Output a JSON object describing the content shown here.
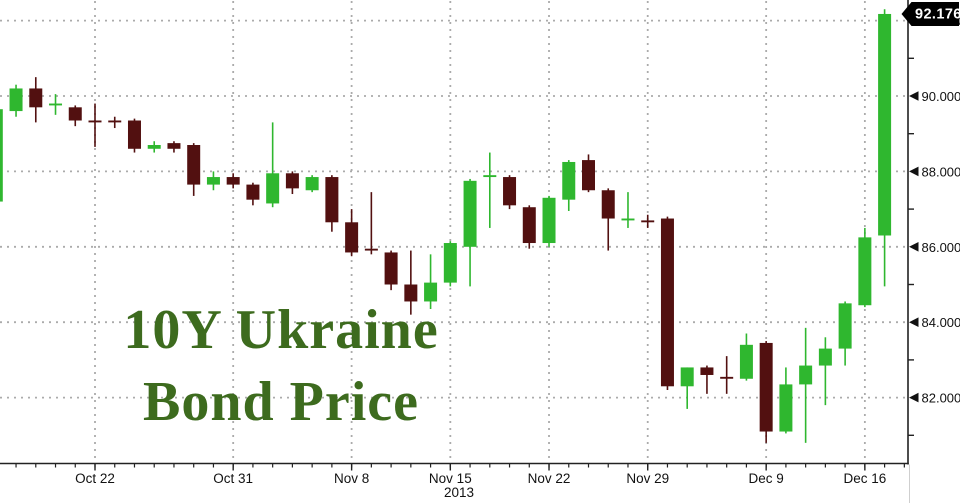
{
  "colors": {
    "background": "#ffffff",
    "candle_up": "#2fb72f",
    "candle_down": "#521010",
    "grid": "#ababab",
    "axis": "#222222",
    "tick_label": "#111111",
    "title_text": "#3d6b1e",
    "tag_background": "#000000",
    "tag_text": "#ffffff"
  },
  "chart_data": {
    "type": "candlestick",
    "title": "10Y Ukraine Bond Price",
    "title_lines": [
      "10Y Ukraine",
      "Bond Price"
    ],
    "legend": "none",
    "grid": "dotted",
    "last_price": {
      "label": "92.176",
      "value": 92.176
    },
    "y_axis": {
      "side": "right",
      "tick_values": [
        92,
        90,
        88,
        86,
        84,
        82
      ],
      "tick_labels": [
        "92.000",
        "90.000",
        "88.000",
        "86.000",
        "84.000",
        "82.000"
      ],
      "minor_tick_values": [
        91,
        89,
        87,
        85,
        83,
        81
      ],
      "visible_range": [
        80.3,
        92.55
      ]
    },
    "x_axis": {
      "year_label": "2013",
      "labels": [
        {
          "text": "Oct 22",
          "candle_index": 5
        },
        {
          "text": "Oct 31",
          "candle_index": 12
        },
        {
          "text": "Nov 8",
          "candle_index": 18
        },
        {
          "text": "Nov 15",
          "candle_index": 23
        },
        {
          "text": "Nov 22",
          "candle_index": 28
        },
        {
          "text": "Nov 29",
          "candle_index": 33
        },
        {
          "text": "Dec 9",
          "candle_index": 39
        },
        {
          "text": "Dec 16",
          "candle_index": 44
        }
      ]
    },
    "candles": {
      "columns": [
        "date",
        "open",
        "high",
        "low",
        "close"
      ],
      "rows": [
        [
          "Oct 15",
          87.2,
          89.65,
          87.15,
          89.65
        ],
        [
          "Oct 16",
          89.6,
          90.3,
          89.45,
          90.2
        ],
        [
          "Oct 17",
          90.2,
          90.5,
          89.3,
          89.7
        ],
        [
          "Oct 18",
          89.75,
          90.05,
          89.5,
          89.8
        ],
        [
          "Oct 21",
          89.7,
          89.75,
          89.2,
          89.35
        ],
        [
          "Oct 22",
          89.35,
          89.8,
          88.65,
          89.3
        ],
        [
          "Oct 23",
          89.35,
          89.45,
          89.15,
          89.3
        ],
        [
          "Oct 24",
          89.35,
          89.4,
          88.5,
          88.6
        ],
        [
          "Oct 25",
          88.6,
          88.8,
          88.5,
          88.7
        ],
        [
          "Oct 28",
          88.75,
          88.8,
          88.5,
          88.6
        ],
        [
          "Oct 29",
          88.7,
          88.75,
          87.35,
          87.65
        ],
        [
          "Oct 30",
          87.65,
          88.0,
          87.5,
          87.85
        ],
        [
          "Oct 31",
          87.85,
          87.95,
          87.55,
          87.65
        ],
        [
          "Nov 1",
          87.65,
          87.7,
          87.1,
          87.25
        ],
        [
          "Nov 4",
          87.15,
          89.3,
          87.05,
          87.95
        ],
        [
          "Nov 5",
          87.95,
          88.0,
          87.4,
          87.55
        ],
        [
          "Nov 6",
          87.5,
          87.9,
          87.45,
          87.85
        ],
        [
          "Nov 7",
          87.85,
          87.9,
          86.4,
          86.65
        ],
        [
          "Nov 8",
          86.65,
          87.0,
          85.75,
          85.85
        ],
        [
          "Nov 11",
          85.95,
          87.45,
          85.8,
          85.9
        ],
        [
          "Nov 12",
          85.85,
          85.9,
          84.85,
          85.0
        ],
        [
          "Nov 13",
          85.0,
          85.9,
          84.2,
          84.55
        ],
        [
          "Nov 14",
          84.55,
          85.8,
          84.35,
          85.05
        ],
        [
          "Nov 15",
          85.05,
          86.15,
          84.95,
          86.1
        ],
        [
          "Nov 18",
          86.0,
          87.8,
          84.95,
          87.75
        ],
        [
          "Nov 19",
          87.85,
          88.5,
          86.5,
          87.9
        ],
        [
          "Nov 20",
          87.85,
          87.9,
          87.0,
          87.1
        ],
        [
          "Nov 21",
          87.05,
          87.1,
          85.95,
          86.1
        ],
        [
          "Nov 22",
          86.1,
          87.35,
          86.0,
          87.3
        ],
        [
          "Nov 25",
          87.25,
          88.3,
          86.95,
          88.25
        ],
        [
          "Nov 26",
          88.3,
          88.45,
          87.45,
          87.5
        ],
        [
          "Nov 27",
          87.5,
          87.55,
          85.9,
          86.75
        ],
        [
          "Nov 28",
          86.7,
          87.45,
          86.5,
          86.75
        ],
        [
          "Nov 29",
          86.7,
          86.85,
          86.5,
          86.65
        ],
        [
          "Dec 2",
          86.75,
          86.8,
          82.2,
          82.3
        ],
        [
          "Dec 3",
          82.3,
          82.8,
          81.7,
          82.8
        ],
        [
          "Dec 4",
          82.8,
          82.85,
          82.1,
          82.6
        ],
        [
          "Dec 5",
          82.55,
          83.1,
          82.1,
          82.5
        ],
        [
          "Dec 6",
          82.5,
          83.7,
          82.45,
          83.4
        ],
        [
          "Dec 9",
          83.45,
          83.5,
          80.8,
          81.1
        ],
        [
          "Dec 10",
          81.1,
          82.8,
          81.05,
          82.35
        ],
        [
          "Dec 11",
          82.35,
          83.85,
          80.8,
          82.85
        ],
        [
          "Dec 12",
          82.85,
          83.6,
          81.8,
          83.3
        ],
        [
          "Dec 13",
          83.3,
          84.55,
          82.85,
          84.5
        ],
        [
          "Dec 16",
          84.45,
          86.5,
          84.4,
          86.25
        ],
        [
          "Dec 17",
          86.3,
          92.3,
          84.95,
          92.176
        ]
      ]
    }
  }
}
